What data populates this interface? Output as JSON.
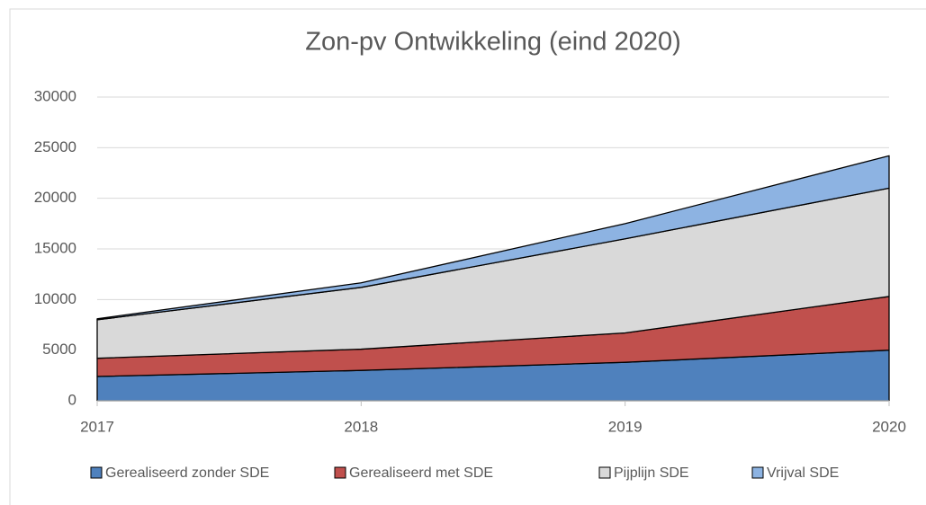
{
  "chart_data": {
    "type": "stacked_area",
    "title": "Zon-pv Ontwikkeling (eind 2020)",
    "categories": [
      "2017",
      "2018",
      "2019",
      "2020"
    ],
    "series": [
      {
        "name": "Gerealiseerd zonder SDE",
        "color": "#4f81bd",
        "values": [
          2400,
          3000,
          3800,
          5000
        ]
      },
      {
        "name": "Gerealiseerd met SDE",
        "color": "#c0504d",
        "values": [
          1800,
          2100,
          2900,
          5300
        ]
      },
      {
        "name": "Pijplijn SDE",
        "color": "#d9d9d9",
        "values": [
          3800,
          6100,
          9300,
          10700
        ]
      },
      {
        "name": "Vrijval SDE",
        "color": "#8db3e2",
        "values": [
          100,
          450,
          1500,
          3200
        ]
      }
    ],
    "ylim": [
      0,
      30000
    ],
    "yticks": [
      0,
      5000,
      10000,
      15000,
      20000,
      25000,
      30000
    ],
    "grid": true,
    "legend": "bottom"
  }
}
